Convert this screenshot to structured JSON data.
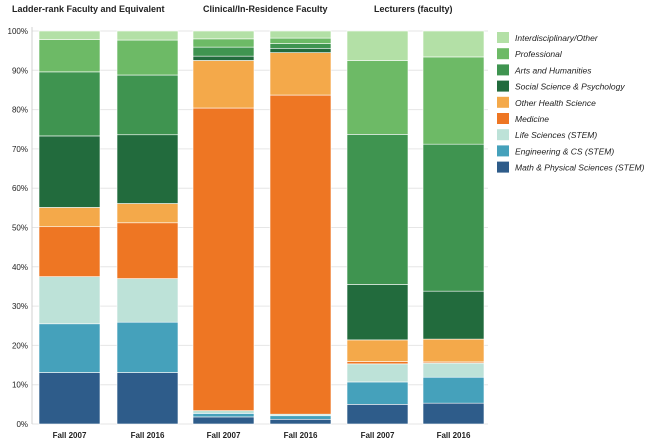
{
  "chart_data": {
    "type": "bar",
    "stacked": true,
    "ylim": [
      0,
      100
    ],
    "yticks": [
      "0%",
      "10%",
      "20%",
      "30%",
      "40%",
      "50%",
      "60%",
      "70%",
      "80%",
      "90%",
      "100%"
    ],
    "grid": true,
    "legend_position": "right",
    "series_order": [
      "Math & Physical Sciences (STEM)",
      "Engineering & CS (STEM)",
      "Life Sciences (STEM)",
      "Medicine",
      "Other Health Science",
      "Social Science & Psychology",
      "Arts and Humanities",
      "Professional",
      "Interdisciplinary/Other"
    ],
    "colors": {
      "Math & Physical Sciences (STEM)": "#2e5c8a",
      "Engineering & CS (STEM)": "#45a1bb",
      "Life Sciences (STEM)": "#bde2d8",
      "Medicine": "#ee7623",
      "Other Health Science": "#f4a94a",
      "Social Science & Psychology": "#226b3d",
      "Arts and Humanities": "#3f9450",
      "Professional": "#6dba66",
      "Interdisciplinary/Other": "#b3e0a6"
    },
    "legend": [
      "Interdisciplinary/Other",
      "Professional",
      "Arts and Humanities",
      "Social Science & Psychology",
      "Other Health Science",
      "Medicine",
      "Life Sciences (STEM)",
      "Engineering & CS (STEM)",
      "Math & Physical Sciences (STEM)"
    ],
    "panels": [
      {
        "title": "Ladder-rank Faculty and Equivalent",
        "bars": [
          {
            "category": "Fall 2007",
            "values": [
              13.1,
              12.4,
              12.0,
              12.7,
              4.9,
              18.2,
              16.3,
              8.2,
              2.2
            ]
          },
          {
            "category": "Fall 2016",
            "values": [
              13.1,
              12.8,
              11.1,
              14.2,
              4.9,
              17.5,
              15.2,
              8.9,
              2.3
            ]
          }
        ]
      },
      {
        "title": "Clinical/In-Residence Faculty",
        "bars": [
          {
            "category": "Fall 2007",
            "values": [
              1.8,
              0.9,
              0.7,
              77.0,
              12.1,
              1.1,
              2.3,
              2.1,
              2.0
            ]
          },
          {
            "category": "Fall 2016",
            "values": [
              1.2,
              0.9,
              0.4,
              81.2,
              10.8,
              1.1,
              1.2,
              1.4,
              1.8
            ]
          }
        ]
      },
      {
        "title": "Lecturers (faculty)",
        "bars": [
          {
            "category": "Fall 2007",
            "values": [
              5.0,
              5.7,
              4.6,
              0.6,
              5.5,
              14.1,
              38.2,
              18.8,
              7.5
            ]
          },
          {
            "category": "Fall 2016",
            "values": [
              5.3,
              6.6,
              3.6,
              0.3,
              5.8,
              12.2,
              37.4,
              22.2,
              6.6
            ]
          }
        ]
      }
    ]
  }
}
